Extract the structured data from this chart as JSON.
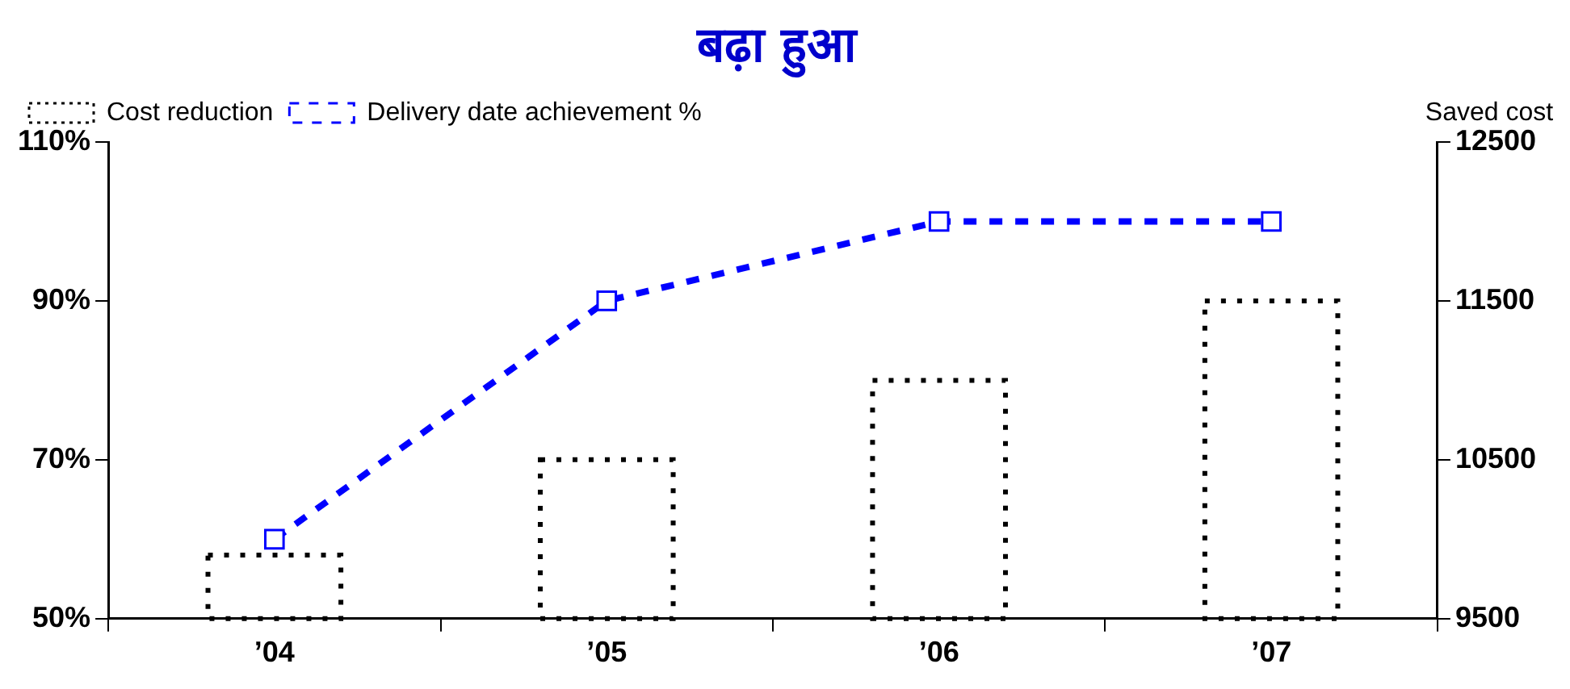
{
  "chart_data": {
    "type": "bar",
    "title": "बढ़ा हुआ",
    "y2label": "Saved cost",
    "categories": [
      "’04",
      "’05",
      "’06",
      "’07"
    ],
    "series": [
      {
        "name": "Cost reduction",
        "axis": "y2",
        "color": "#000000",
        "values": [
          9900,
          10500,
          11000,
          11500
        ]
      },
      {
        "name": "Delivery date achievement %",
        "type": "line",
        "axis": "y",
        "color": "#0000ff",
        "marker": "square",
        "line_style": "dashed",
        "values": [
          60,
          90,
          100,
          100
        ]
      }
    ],
    "ylim": [
      50,
      110
    ],
    "yticks": [
      {
        "value": 50,
        "label": "50%"
      },
      {
        "value": 70,
        "label": "70%"
      },
      {
        "value": 90,
        "label": "90%"
      },
      {
        "value": 110,
        "label": "110%"
      }
    ],
    "y2lim": [
      9500,
      12500
    ],
    "y2ticks": [
      9500,
      10500,
      11500,
      12500
    ],
    "grid": false,
    "legend": "top left"
  }
}
